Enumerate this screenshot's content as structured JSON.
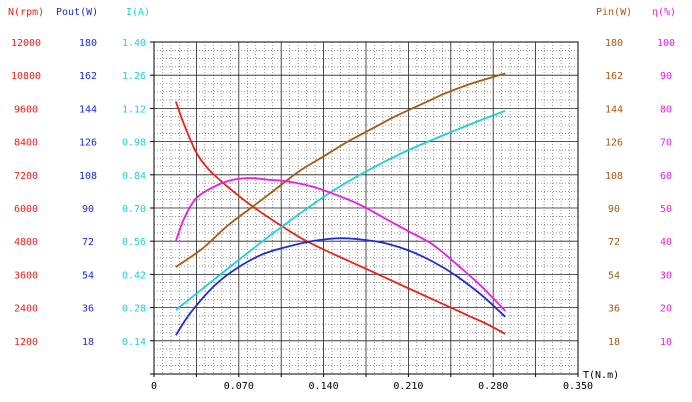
{
  "chart_data": {
    "type": "line",
    "xlabel": "T(N.m)",
    "xlim": [
      0,
      0.35
    ],
    "x_ticks": [
      "0",
      "0.070",
      "0.140",
      "0.210",
      "0.280",
      "0.350"
    ],
    "grid": true,
    "axes": [
      {
        "id": "n",
        "label": "N(rpm)",
        "color": "#e8221b",
        "side": "left",
        "range": [
          0,
          12000
        ],
        "ticks": [
          "1200",
          "2400",
          "3600",
          "4800",
          "6000",
          "7200",
          "8400",
          "9600",
          "10800",
          "12000"
        ]
      },
      {
        "id": "pout",
        "label": "Pout(W)",
        "color": "#1f2bd6",
        "side": "left",
        "range": [
          0,
          180
        ],
        "ticks": [
          "18",
          "36",
          "54",
          "72",
          "90",
          "108",
          "126",
          "144",
          "162",
          "180"
        ]
      },
      {
        "id": "i",
        "label": "I(A)",
        "color": "#19d3d6",
        "side": "left",
        "range": [
          0,
          1.4
        ],
        "ticks": [
          "0.14",
          "0.28",
          "0.42",
          "0.56",
          "0.70",
          "0.84",
          "0.98",
          "1.12",
          "1.26",
          "1.40"
        ]
      },
      {
        "id": "pin",
        "label": "Pin(W)",
        "color": "#a55a12",
        "side": "right",
        "range": [
          0,
          180
        ],
        "ticks": [
          "18",
          "36",
          "54",
          "72",
          "90",
          "108",
          "126",
          "144",
          "162",
          "180"
        ]
      },
      {
        "id": "eff",
        "label": "η(%)",
        "color": "#e81ee0",
        "side": "right",
        "range": [
          0,
          100
        ],
        "ticks": [
          "10",
          "20",
          "30",
          "40",
          "50",
          "60",
          "70",
          "80",
          "90",
          "100"
        ]
      }
    ],
    "series": [
      {
        "axis": "n",
        "color": "#e8221b",
        "x": [
          0.018,
          0.025,
          0.035,
          0.045,
          0.06,
          0.08,
          0.1,
          0.12,
          0.14,
          0.16,
          0.18,
          0.2,
          0.22,
          0.24,
          0.26,
          0.275,
          0.29
        ],
        "y": [
          9850,
          9000,
          8000,
          7400,
          6800,
          6100,
          5500,
          4950,
          4500,
          4100,
          3700,
          3300,
          2900,
          2500,
          2100,
          1800,
          1450
        ]
      },
      {
        "axis": "pout",
        "color": "#1f2bd6",
        "x": [
          0.018,
          0.03,
          0.05,
          0.07,
          0.09,
          0.11,
          0.13,
          0.15,
          0.16,
          0.17,
          0.19,
          0.21,
          0.23,
          0.25,
          0.27,
          0.29
        ],
        "y": [
          21,
          33,
          48,
          58,
          65,
          69,
          72,
          73.5,
          73.5,
          73,
          71,
          67,
          61,
          53,
          43,
          31
        ]
      },
      {
        "axis": "i",
        "color": "#19d3d6",
        "x": [
          0.018,
          0.05,
          0.1,
          0.15,
          0.2,
          0.25,
          0.29
        ],
        "y": [
          0.27,
          0.4,
          0.6,
          0.78,
          0.92,
          1.03,
          1.11
        ]
      },
      {
        "axis": "pin",
        "color": "#a55a12",
        "x": [
          0.018,
          0.04,
          0.06,
          0.08,
          0.1,
          0.12,
          0.14,
          0.16,
          0.18,
          0.2,
          0.22,
          0.24,
          0.26,
          0.28,
          0.29
        ],
        "y": [
          58,
          68,
          80,
          90,
          100,
          110,
          118,
          126,
          133,
          140,
          146,
          152,
          157,
          161,
          163
        ]
      },
      {
        "axis": "eff",
        "color": "#e81ee0",
        "x": [
          0.018,
          0.025,
          0.035,
          0.05,
          0.065,
          0.08,
          0.095,
          0.11,
          0.13,
          0.15,
          0.17,
          0.19,
          0.21,
          0.23,
          0.25,
          0.27,
          0.29
        ],
        "y": [
          40,
          47,
          53,
          56.5,
          58.5,
          59,
          58.5,
          58,
          56.5,
          54,
          51,
          47,
          43,
          39,
          33,
          26.5,
          19
        ]
      }
    ]
  }
}
